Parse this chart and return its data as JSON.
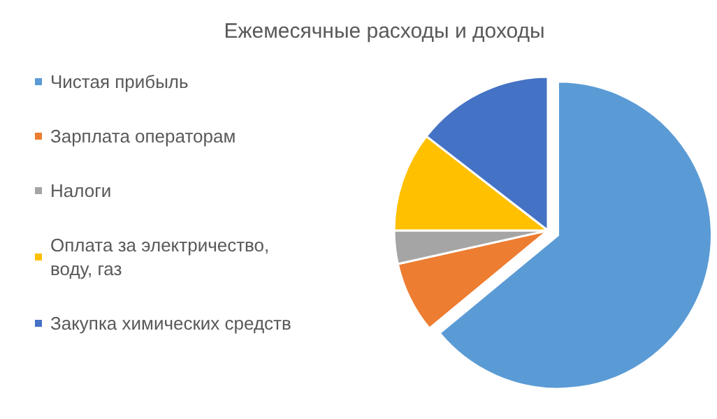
{
  "chart_data": {
    "type": "pie",
    "title": "Ежемесячные расходы и доходы",
    "categories": [
      "Чистая прибыль",
      "Зарплата операторам",
      "Налоги",
      "Оплата за электричество, воду, газ",
      "Закупка химических средств"
    ],
    "values": [
      64,
      7.5,
      3.5,
      10.5,
      14.5
    ],
    "colors": [
      "#5b9bd5",
      "#ed7d31",
      "#a5a5a5",
      "#ffc000",
      "#4472c4"
    ],
    "legend": "left"
  }
}
